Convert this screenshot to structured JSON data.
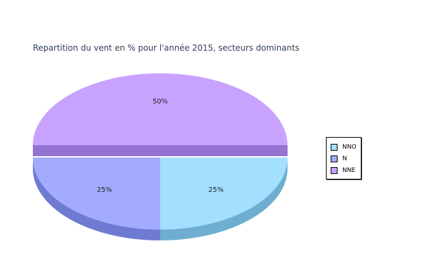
{
  "chart_data": {
    "type": "pie",
    "title": "Repartition du vent en % pour l'année 2015, secteurs dominants",
    "slices": [
      {
        "name": "NNO",
        "value": 25,
        "label": "25%",
        "color": "#a3dfff",
        "side_color": "#6eaed0"
      },
      {
        "name": "N",
        "value": 25,
        "label": "25%",
        "color": "#a3abff",
        "side_color": "#6f7ad2"
      },
      {
        "name": "NNE",
        "value": 50,
        "label": "50%",
        "color": "#c7a3ff",
        "side_color": "#9473d2"
      }
    ],
    "legend_position": "right",
    "exploded": true,
    "three_d": true
  }
}
